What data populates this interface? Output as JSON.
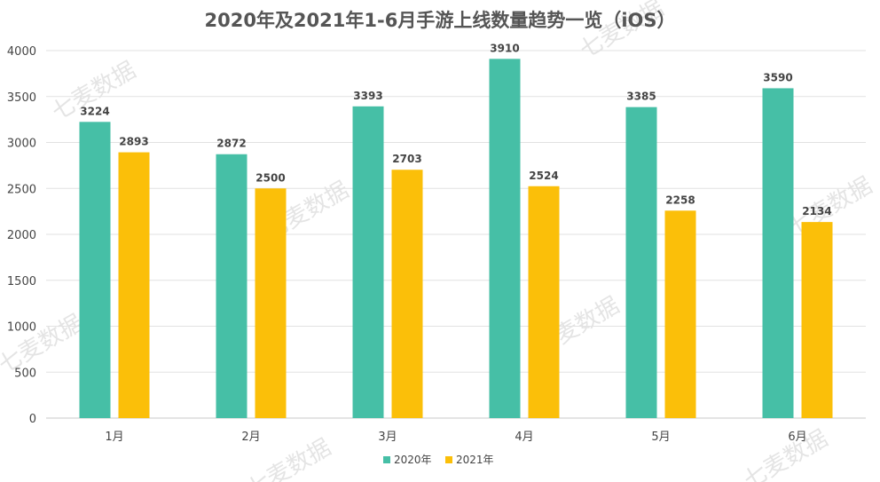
{
  "chart_data": {
    "type": "bar",
    "title": "2020年及2021年1-6月手游上线数量趋势一览（iOS）",
    "categories": [
      "1月",
      "2月",
      "3月",
      "4月",
      "5月",
      "6月"
    ],
    "series": [
      {
        "name": "2020年",
        "color": "#46bfa6",
        "values": [
          3224,
          2872,
          3393,
          3910,
          3385,
          3590
        ]
      },
      {
        "name": "2021年",
        "color": "#fbbf09",
        "values": [
          2893,
          2500,
          2703,
          2524,
          2258,
          2134
        ]
      }
    ],
    "yticks": [
      0,
      500,
      1000,
      1500,
      2000,
      2500,
      3000,
      3500,
      4000
    ],
    "ylim": [
      0,
      4000
    ],
    "grid": true,
    "legend": "bottom-center",
    "xlabel": "",
    "ylabel": ""
  },
  "watermark": {
    "text": "七麦数据"
  }
}
